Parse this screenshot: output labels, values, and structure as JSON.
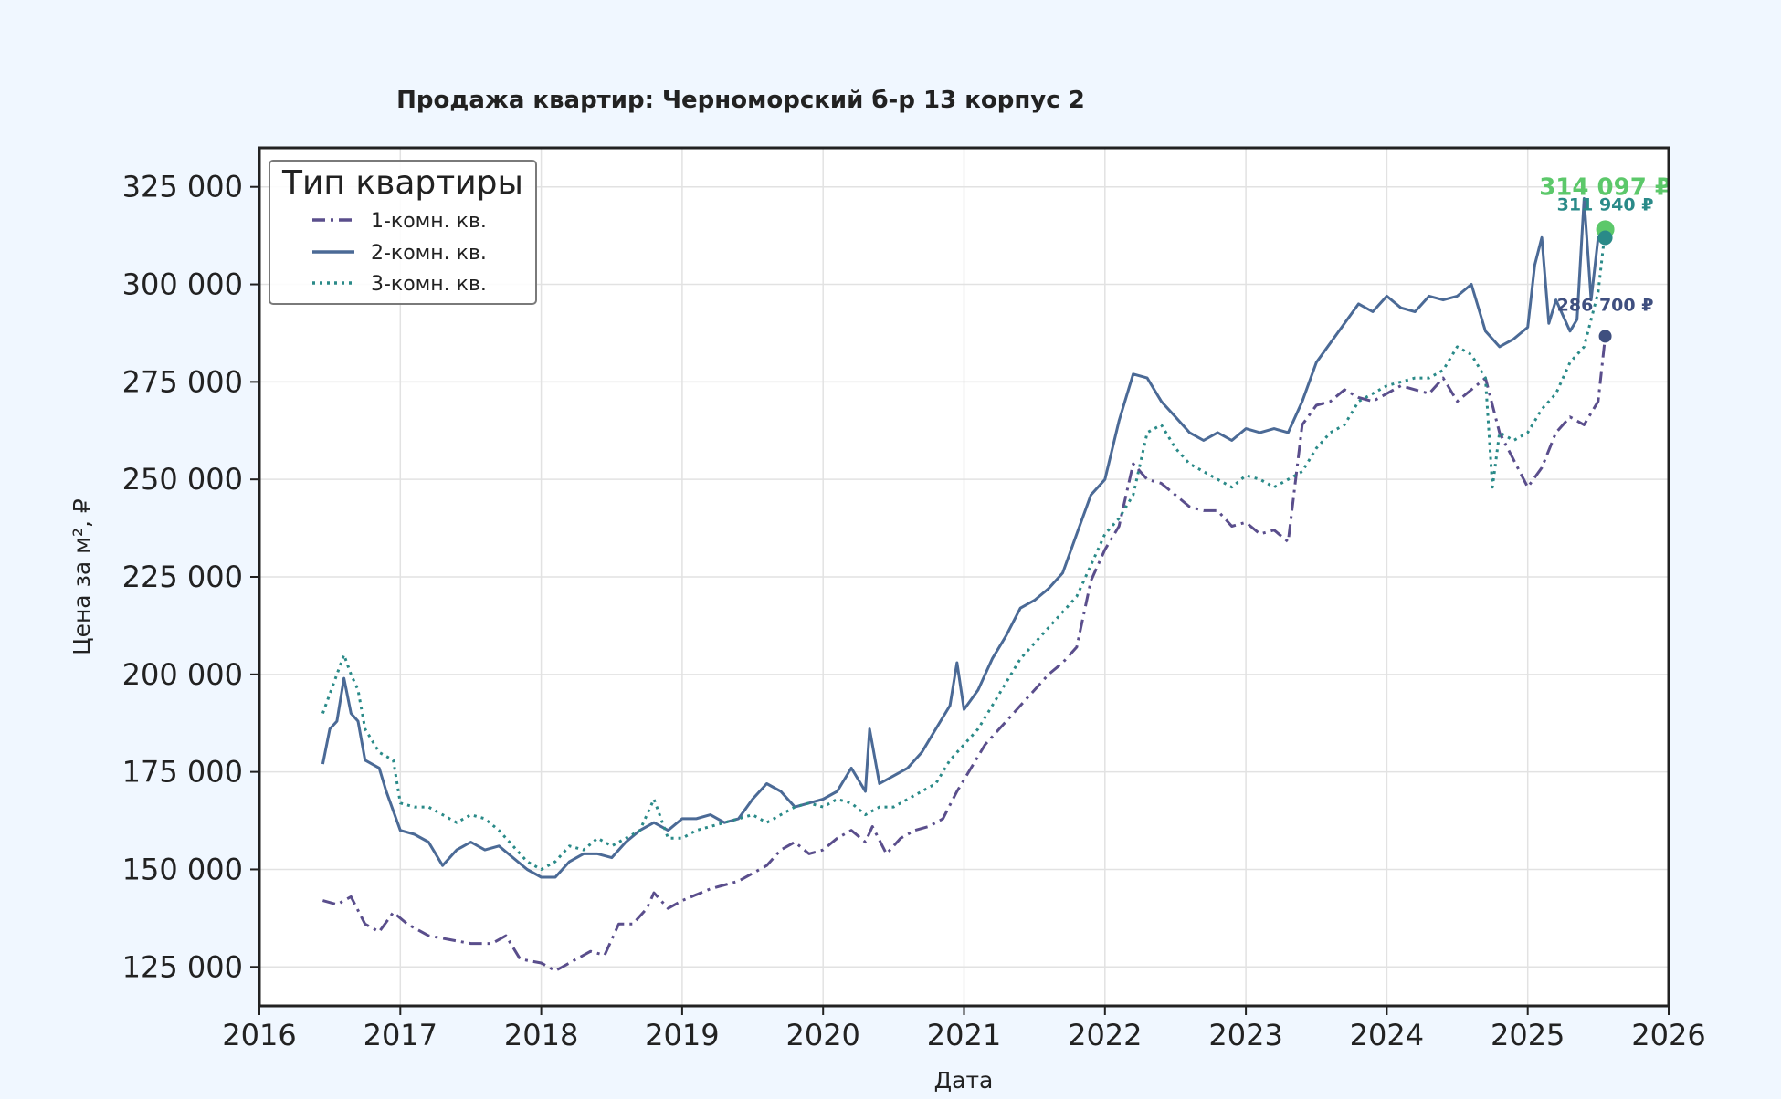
{
  "chart_data": {
    "type": "line",
    "title": "Продажа квартир: Черноморский б-р 13 корпус 2",
    "xlabel": "Дата",
    "ylabel": "Цена за м², ₽",
    "xlim": [
      2016,
      2026
    ],
    "ylim": [
      115000,
      335000
    ],
    "x_ticks": [
      2016,
      2017,
      2018,
      2019,
      2020,
      2021,
      2022,
      2023,
      2024,
      2025,
      2026
    ],
    "x_tick_labels": [
      "2016",
      "2017",
      "2018",
      "2019",
      "2020",
      "2021",
      "2022",
      "2023",
      "2024",
      "2025",
      "2026"
    ],
    "y_ticks": [
      125000,
      150000,
      175000,
      200000,
      225000,
      250000,
      275000,
      300000,
      325000
    ],
    "y_tick_labels": [
      "125 000",
      "150 000",
      "175 000",
      "200 000",
      "225 000",
      "250 000",
      "275 000",
      "300 000",
      "325 000"
    ],
    "grid": true,
    "legend": {
      "title": "Тип квартиры",
      "position": "top-left"
    },
    "series": [
      {
        "name": "1-комн. кв.",
        "color": "#5a4e8c",
        "dash": "dashdot",
        "x": [
          2016.45,
          2016.55,
          2016.65,
          2016.75,
          2016.85,
          2016.95,
          2017.05,
          2017.2,
          2017.35,
          2017.5,
          2017.65,
          2017.75,
          2017.85,
          2018.0,
          2018.1,
          2018.15,
          2018.25,
          2018.35,
          2018.45,
          2018.55,
          2018.65,
          2018.75,
          2018.8,
          2018.9,
          2019.0,
          2019.2,
          2019.4,
          2019.6,
          2019.7,
          2019.8,
          2019.9,
          2020.0,
          2020.1,
          2020.2,
          2020.3,
          2020.35,
          2020.45,
          2020.55,
          2020.65,
          2020.75,
          2020.85,
          2020.95,
          2021.05,
          2021.15,
          2021.3,
          2021.4,
          2021.5,
          2021.6,
          2021.7,
          2021.8,
          2021.9,
          2022.0,
          2022.1,
          2022.2,
          2022.3,
          2022.4,
          2022.5,
          2022.6,
          2022.7,
          2022.8,
          2022.9,
          2023.0,
          2023.1,
          2023.2,
          2023.3,
          2023.4,
          2023.5,
          2023.6,
          2023.7,
          2023.8,
          2023.9,
          2024.0,
          2024.1,
          2024.2,
          2024.3,
          2024.4,
          2024.5,
          2024.6,
          2024.7,
          2024.8,
          2024.9,
          2025.0,
          2025.1,
          2025.2,
          2025.3,
          2025.4,
          2025.5,
          2025.55
        ],
        "y": [
          142000,
          141000,
          143000,
          136000,
          134000,
          139000,
          136000,
          133000,
          132000,
          131000,
          131000,
          133000,
          127000,
          126000,
          124000,
          125000,
          127000,
          129000,
          128000,
          136000,
          136000,
          140000,
          144000,
          140000,
          142000,
          145000,
          147000,
          151000,
          155000,
          157000,
          154000,
          155000,
          158000,
          160000,
          157000,
          161000,
          154000,
          158000,
          160000,
          161000,
          163000,
          170000,
          176000,
          182000,
          188000,
          192000,
          196000,
          200000,
          203000,
          207000,
          224000,
          232000,
          238000,
          254000,
          250000,
          249000,
          246000,
          243000,
          242000,
          242000,
          238000,
          239000,
          236000,
          237000,
          234000,
          264000,
          269000,
          270000,
          273000,
          271000,
          270000,
          272000,
          274000,
          273000,
          272000,
          276000,
          270000,
          273000,
          276000,
          262000,
          255000,
          248000,
          253000,
          262000,
          266000,
          264000,
          270000,
          286700
        ]
      },
      {
        "name": "2-комн. кв.",
        "color": "#4b6a96",
        "dash": "solid",
        "x": [
          2016.45,
          2016.5,
          2016.55,
          2016.6,
          2016.65,
          2016.7,
          2016.75,
          2016.85,
          2016.9,
          2017.0,
          2017.1,
          2017.2,
          2017.3,
          2017.4,
          2017.5,
          2017.6,
          2017.7,
          2017.8,
          2017.9,
          2018.0,
          2018.1,
          2018.2,
          2018.3,
          2018.4,
          2018.5,
          2018.6,
          2018.7,
          2018.8,
          2018.9,
          2019.0,
          2019.1,
          2019.2,
          2019.3,
          2019.4,
          2019.5,
          2019.6,
          2019.7,
          2019.8,
          2019.9,
          2020.0,
          2020.1,
          2020.2,
          2020.3,
          2020.33,
          2020.4,
          2020.5,
          2020.6,
          2020.7,
          2020.8,
          2020.9,
          2020.95,
          2021.0,
          2021.1,
          2021.2,
          2021.3,
          2021.4,
          2021.5,
          2021.6,
          2021.7,
          2021.8,
          2021.9,
          2022.0,
          2022.1,
          2022.2,
          2022.3,
          2022.4,
          2022.5,
          2022.6,
          2022.7,
          2022.8,
          2022.9,
          2023.0,
          2023.1,
          2023.2,
          2023.3,
          2023.4,
          2023.5,
          2023.6,
          2023.7,
          2023.8,
          2023.9,
          2024.0,
          2024.1,
          2024.2,
          2024.3,
          2024.4,
          2024.5,
          2024.6,
          2024.7,
          2024.8,
          2024.9,
          2025.0,
          2025.05,
          2025.1,
          2025.15,
          2025.2,
          2025.3,
          2025.35,
          2025.4,
          2025.45,
          2025.5,
          2025.55
        ],
        "y": [
          177000,
          186000,
          188000,
          199000,
          190000,
          188000,
          178000,
          176000,
          170000,
          160000,
          159000,
          157000,
          151000,
          155000,
          157000,
          155000,
          156000,
          153000,
          150000,
          148000,
          148000,
          152000,
          154000,
          154000,
          153000,
          157000,
          160000,
          162000,
          160000,
          163000,
          163000,
          164000,
          162000,
          163000,
          168000,
          172000,
          170000,
          166000,
          167000,
          168000,
          170000,
          176000,
          170000,
          186000,
          172000,
          174000,
          176000,
          180000,
          186000,
          192000,
          203000,
          191000,
          196000,
          204000,
          210000,
          217000,
          219000,
          222000,
          226000,
          236000,
          246000,
          250000,
          265000,
          277000,
          276000,
          270000,
          266000,
          262000,
          260000,
          262000,
          260000,
          263000,
          262000,
          263000,
          262000,
          270000,
          280000,
          285000,
          290000,
          295000,
          293000,
          297000,
          294000,
          293000,
          297000,
          296000,
          297000,
          300000,
          288000,
          284000,
          286000,
          289000,
          305000,
          312000,
          290000,
          296000,
          288000,
          291000,
          322000,
          296000,
          312000,
          311940
        ]
      },
      {
        "name": "3-комн. кв.",
        "color": "#2a8a88",
        "dash": "dotted",
        "x": [
          2016.45,
          2016.5,
          2016.55,
          2016.6,
          2016.65,
          2016.7,
          2016.75,
          2016.85,
          2016.95,
          2017.0,
          2017.1,
          2017.2,
          2017.3,
          2017.4,
          2017.5,
          2017.6,
          2017.7,
          2017.8,
          2017.9,
          2018.0,
          2018.1,
          2018.2,
          2018.3,
          2018.4,
          2018.5,
          2018.6,
          2018.7,
          2018.8,
          2018.9,
          2019.0,
          2019.1,
          2019.2,
          2019.3,
          2019.4,
          2019.5,
          2019.6,
          2019.7,
          2019.8,
          2019.9,
          2020.0,
          2020.1,
          2020.2,
          2020.3,
          2020.4,
          2020.5,
          2020.6,
          2020.7,
          2020.8,
          2020.9,
          2021.0,
          2021.1,
          2021.2,
          2021.3,
          2021.4,
          2021.5,
          2021.6,
          2021.7,
          2021.8,
          2021.9,
          2022.0,
          2022.1,
          2022.2,
          2022.3,
          2022.4,
          2022.5,
          2022.6,
          2022.7,
          2022.8,
          2022.9,
          2023.0,
          2023.1,
          2023.2,
          2023.3,
          2023.4,
          2023.5,
          2023.6,
          2023.7,
          2023.8,
          2023.9,
          2024.0,
          2024.1,
          2024.2,
          2024.3,
          2024.4,
          2024.5,
          2024.6,
          2024.7,
          2024.75,
          2024.8,
          2024.9,
          2025.0,
          2025.1,
          2025.2,
          2025.3,
          2025.4,
          2025.5,
          2025.55
        ],
        "y": [
          190000,
          195000,
          200000,
          205000,
          200000,
          196000,
          186000,
          180000,
          178000,
          167000,
          166000,
          166000,
          164000,
          162000,
          164000,
          163000,
          160000,
          156000,
          152000,
          150000,
          152000,
          156000,
          155000,
          158000,
          156000,
          158000,
          160000,
          168000,
          158000,
          158000,
          160000,
          161000,
          162000,
          163000,
          164000,
          162000,
          164000,
          166000,
          167000,
          166000,
          168000,
          167000,
          164000,
          166000,
          166000,
          168000,
          170000,
          172000,
          178000,
          182000,
          186000,
          192000,
          198000,
          204000,
          208000,
          212000,
          216000,
          220000,
          228000,
          236000,
          240000,
          246000,
          262000,
          264000,
          258000,
          254000,
          252000,
          250000,
          248000,
          251000,
          250000,
          248000,
          250000,
          252000,
          258000,
          262000,
          264000,
          270000,
          272000,
          274000,
          275000,
          276000,
          276000,
          278000,
          284000,
          282000,
          276000,
          248000,
          262000,
          260000,
          262000,
          268000,
          272000,
          280000,
          284000,
          298000,
          314097
        ]
      }
    ],
    "end_labels": [
      {
        "series": "3-комн. кв.",
        "text": "314 097 ₽",
        "color": "#5cc86a"
      },
      {
        "series": "2-комн. кв.",
        "text": "311 940 ₽",
        "color": "#2a8a88"
      },
      {
        "series": "1-комн. кв.",
        "text": "286 700 ₽",
        "color": "#3f4f7f"
      }
    ]
  }
}
